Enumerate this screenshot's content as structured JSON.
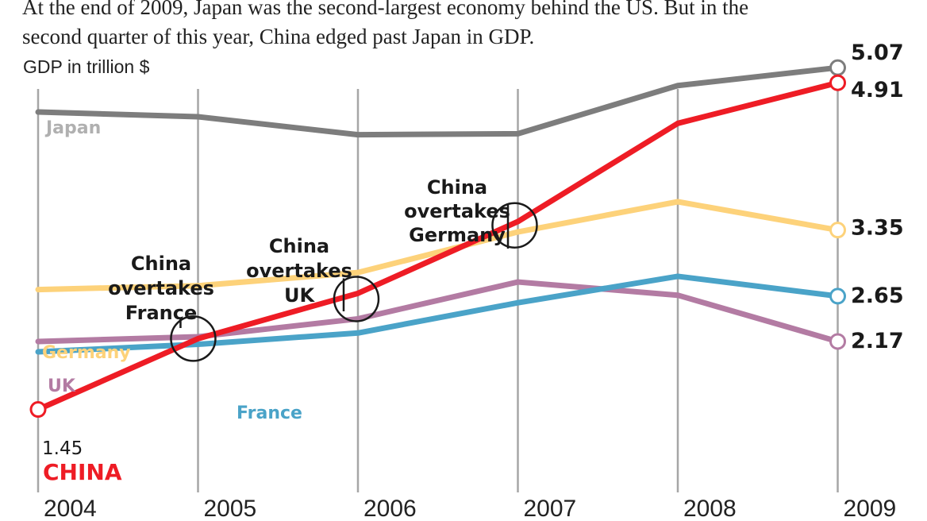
{
  "colors": {
    "Japan": "#7d7d7d",
    "China": "#ee1c25",
    "Germany": "#fdd27a",
    "UK": "#b37ba3",
    "France": "#4aa3c8",
    "gridline": "#a6a6a6"
  },
  "chart_data": {
    "type": "line",
    "subtitle_lines": [
      "At the end of 2009, Japan was the second-largest economy behind the US. But in the",
      "second quarter of this year, China edged past Japan in GDP."
    ],
    "ylabel": "GDP in trillion $",
    "ylim": [
      0.95,
      5.45
    ],
    "grid": "vertical",
    "x": [
      "2004",
      "2005",
      "2006",
      "2007",
      "2008",
      "2009"
    ],
    "series": [
      {
        "name": "Japan",
        "label": "Japan",
        "values": [
          4.6,
          4.55,
          4.36,
          4.37,
          4.88,
          5.07
        ],
        "end_value_label": "5.07"
      },
      {
        "name": "Germany",
        "label": "Germany",
        "values": [
          2.72,
          2.76,
          2.9,
          3.33,
          3.65,
          3.35
        ],
        "end_value_label": "3.35"
      },
      {
        "name": "UK",
        "label": "UK",
        "values": [
          2.17,
          2.22,
          2.41,
          2.8,
          2.66,
          2.17
        ],
        "end_value_label": "2.17"
      },
      {
        "name": "France",
        "label": "France",
        "values": [
          2.06,
          2.14,
          2.26,
          2.58,
          2.86,
          2.65
        ],
        "end_value_label": "2.65"
      },
      {
        "name": "China",
        "label": "CHINA",
        "values": [
          1.45,
          2.2,
          2.68,
          3.44,
          4.48,
          4.91
        ],
        "start_value_label": "1.45",
        "end_value_label": "4.91"
      }
    ],
    "annotations": [
      {
        "lines": [
          "China",
          "overtakes",
          "France"
        ],
        "year": 2004.97,
        "value": 2.2
      },
      {
        "lines": [
          "China",
          "overtakes",
          "UK"
        ],
        "year": 2005.99,
        "value": 2.62
      },
      {
        "lines": [
          "China",
          "overtakes",
          "Germany"
        ],
        "year": 2006.98,
        "value": 3.4
      }
    ]
  }
}
